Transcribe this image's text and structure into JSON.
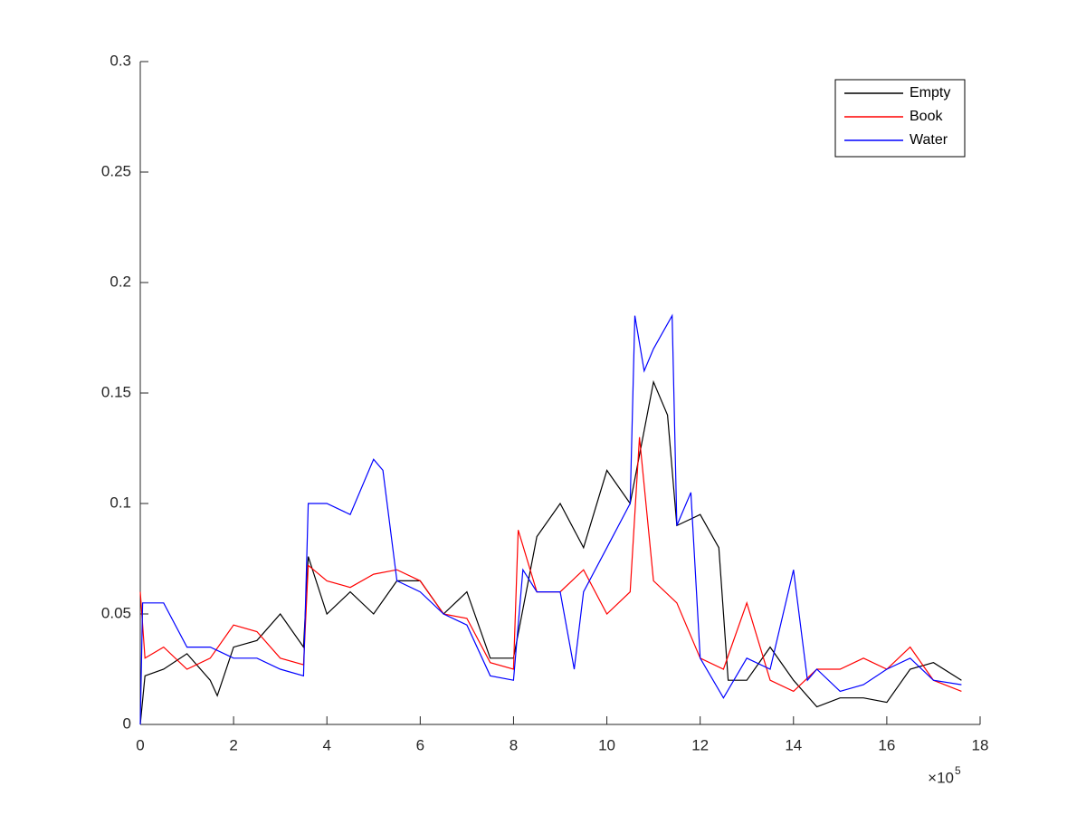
{
  "chart_data": {
    "type": "line",
    "x_multiplier": {
      "base": "×10",
      "exponent": "5"
    },
    "xlim": [
      0,
      18
    ],
    "xticks": [
      0,
      2,
      4,
      6,
      8,
      10,
      12,
      14,
      16,
      18
    ],
    "ylim": [
      0,
      0.3
    ],
    "yticks": [
      0,
      0.05,
      0.1,
      0.15,
      0.2,
      0.25,
      0.3
    ],
    "legend_position": "upper right",
    "series": [
      {
        "name": "Empty",
        "color": "#000000",
        "x": [
          0,
          0.1,
          0.5,
          1,
          1.5,
          1.65,
          2,
          2.5,
          3,
          3.5,
          3.6,
          4,
          4.5,
          5,
          5.5,
          6,
          6.5,
          7,
          7.5,
          8,
          8.5,
          9,
          9.5,
          10,
          10.5,
          11,
          11.3,
          11.5,
          12,
          12.4,
          12.6,
          13,
          13.5,
          14,
          14.5,
          15,
          15.5,
          16,
          16.5,
          17,
          17.6
        ],
        "values": [
          0,
          0.022,
          0.025,
          0.032,
          0.02,
          0.013,
          0.035,
          0.038,
          0.05,
          0.035,
          0.076,
          0.05,
          0.06,
          0.05,
          0.065,
          0.065,
          0.05,
          0.06,
          0.03,
          0.03,
          0.085,
          0.1,
          0.08,
          0.115,
          0.1,
          0.155,
          0.14,
          0.09,
          0.095,
          0.08,
          0.02,
          0.02,
          0.035,
          0.02,
          0.008,
          0.012,
          0.012,
          0.01,
          0.025,
          0.028,
          0.02
        ]
      },
      {
        "name": "Book",
        "color": "#ff0000",
        "x": [
          0,
          0.1,
          0.5,
          1,
          1.5,
          2,
          2.5,
          3,
          3.5,
          3.6,
          4,
          4.5,
          5,
          5.5,
          6,
          6.5,
          7,
          7.5,
          8,
          8.1,
          8.5,
          9,
          9.5,
          10,
          10.5,
          10.7,
          11,
          11.5,
          12,
          12.5,
          13,
          13.5,
          14,
          14.5,
          15,
          15.5,
          16,
          16.5,
          17,
          17.6
        ],
        "values": [
          0.06,
          0.03,
          0.035,
          0.025,
          0.03,
          0.045,
          0.042,
          0.03,
          0.027,
          0.072,
          0.065,
          0.062,
          0.068,
          0.07,
          0.065,
          0.05,
          0.048,
          0.028,
          0.025,
          0.088,
          0.06,
          0.06,
          0.07,
          0.05,
          0.06,
          0.13,
          0.065,
          0.055,
          0.03,
          0.025,
          0.055,
          0.02,
          0.015,
          0.025,
          0.025,
          0.03,
          0.025,
          0.035,
          0.02,
          0.015
        ]
      },
      {
        "name": "Water",
        "color": "#0000ff",
        "x": [
          0,
          0.05,
          0.5,
          1,
          1.5,
          2,
          2.5,
          3,
          3.5,
          3.6,
          4,
          4.5,
          5,
          5.2,
          5.5,
          6,
          6.5,
          7,
          7.5,
          8,
          8.2,
          8.5,
          9,
          9.3,
          9.5,
          10,
          10.5,
          10.6,
          10.8,
          11,
          11.4,
          11.5,
          11.8,
          12,
          12.5,
          13,
          13.5,
          14,
          14.3,
          14.5,
          15,
          15.5,
          16,
          16.5,
          17,
          17.6
        ],
        "values": [
          0,
          0.055,
          0.055,
          0.035,
          0.035,
          0.03,
          0.03,
          0.025,
          0.022,
          0.1,
          0.1,
          0.095,
          0.12,
          0.115,
          0.065,
          0.06,
          0.05,
          0.045,
          0.022,
          0.02,
          0.07,
          0.06,
          0.06,
          0.025,
          0.06,
          0.08,
          0.1,
          0.185,
          0.16,
          0.17,
          0.185,
          0.09,
          0.105,
          0.03,
          0.012,
          0.03,
          0.025,
          0.07,
          0.02,
          0.025,
          0.015,
          0.018,
          0.025,
          0.03,
          0.02,
          0.018
        ]
      }
    ]
  }
}
